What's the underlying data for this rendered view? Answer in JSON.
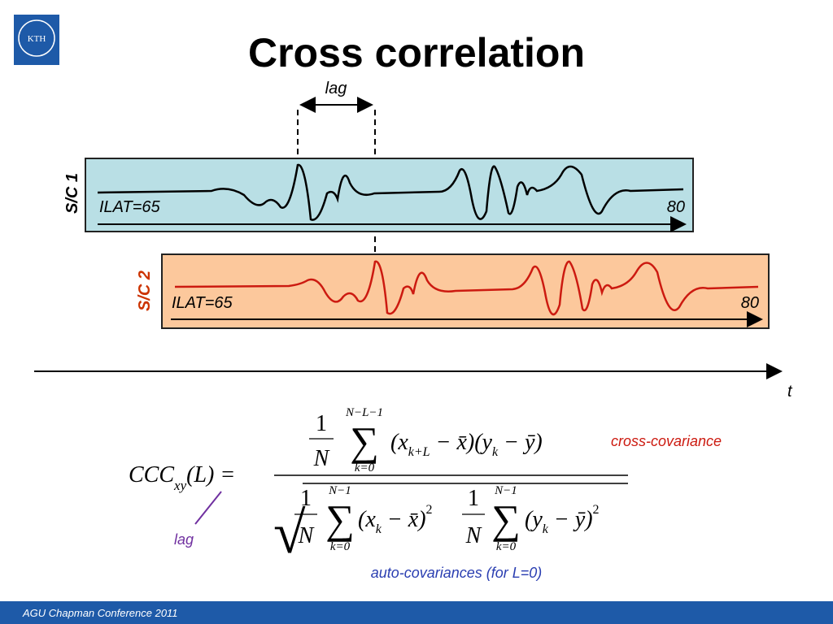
{
  "header": {
    "logo": "KTH",
    "title": "Cross correlation"
  },
  "diagram": {
    "lag_label": "lag",
    "sc1": {
      "label": "S/C 1",
      "left": "ILAT=65",
      "right": "80"
    },
    "sc2": {
      "label": "S/C 2",
      "left": "ILAT=65",
      "right": "80"
    },
    "time_label": "t"
  },
  "formula": {
    "lhs": "CCC",
    "lhs_sub": "xy",
    "lhs_arg": "(L) =",
    "numerator": {
      "one": "1",
      "n": "N",
      "sum": "∑",
      "sum_top": "N−L−1",
      "sum_bottom": "k=0",
      "body": [
        "(x",
        "k+L",
        " − x̄)(y",
        "k",
        " − ȳ)"
      ]
    },
    "denominator": {
      "root": "√",
      "left": {
        "one": "1",
        "n": "N",
        "sum": "∑",
        "sum_top": "N−1",
        "sum_bottom": "k=0",
        "body": [
          "(x",
          "k",
          " − x̄)",
          "2"
        ]
      },
      "right": {
        "one": "1",
        "n": "N",
        "sum": "∑",
        "sum_top": "N−1",
        "sum_bottom": "k=0",
        "body": [
          "(y",
          "k",
          " − ȳ)",
          "2"
        ]
      }
    },
    "note_cross": "cross-covariance",
    "note_lag": "lag",
    "note_auto": "auto-covariances (for L=0)"
  },
  "footer": "AGU Chapman Conference 2011"
}
